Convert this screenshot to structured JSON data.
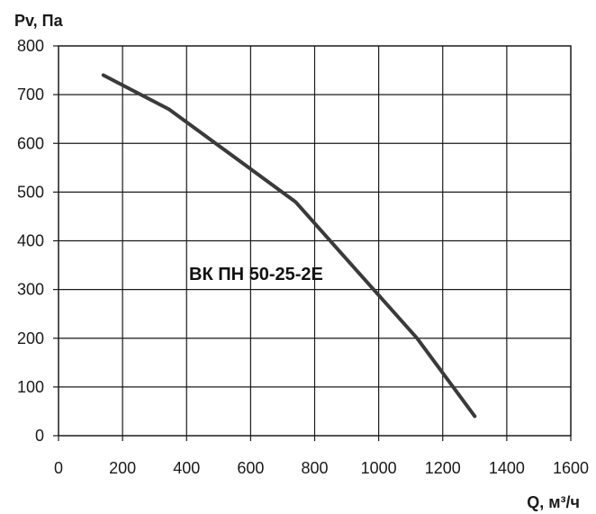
{
  "chart_data": {
    "type": "line",
    "title": "",
    "xlabel": "Q, м³/ч",
    "ylabel": "Pv, Па",
    "xlim": [
      0,
      1600
    ],
    "ylim": [
      0,
      800
    ],
    "x_ticks": [
      "0",
      "200",
      "400",
      "600",
      "800",
      "1000",
      "1200",
      "1400",
      "1600"
    ],
    "y_ticks": [
      "0",
      "100",
      "200",
      "300",
      "400",
      "500",
      "600",
      "700",
      "800"
    ],
    "x_tick_values": [
      0,
      200,
      400,
      600,
      800,
      1000,
      1200,
      1400,
      1600
    ],
    "y_tick_values": [
      0,
      100,
      200,
      300,
      400,
      500,
      600,
      700,
      800
    ],
    "grid": true,
    "series": [
      {
        "name": "ВК ПН 50-25-2Е",
        "x": [
          140,
          345,
          740,
          1120,
          1300
        ],
        "y": [
          740,
          670,
          480,
          200,
          40
        ]
      }
    ],
    "colors": {
      "line": "#3a3a3a",
      "grid": "#1a1a1a",
      "text": "#1a1a1a"
    }
  }
}
